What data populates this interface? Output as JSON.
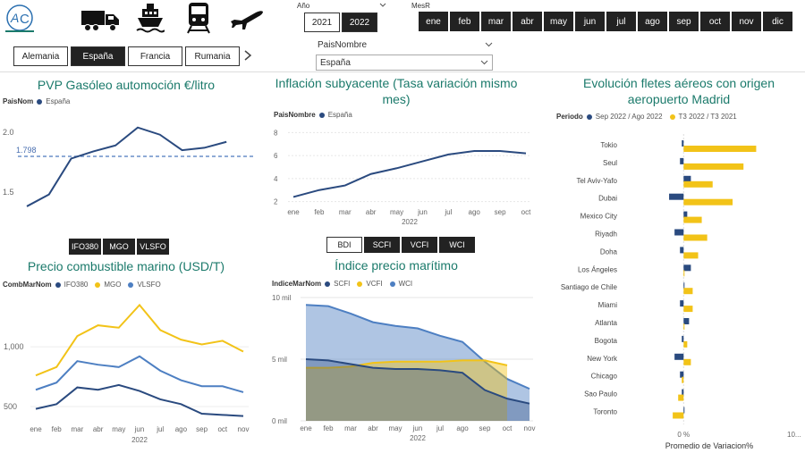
{
  "transport_icons": [
    "truck-icon",
    "ship-icon",
    "train-icon",
    "plane-icon"
  ],
  "country_tabs": [
    {
      "label": "Alemania",
      "selected": false
    },
    {
      "label": "España",
      "selected": true
    },
    {
      "label": "Francia",
      "selected": false
    },
    {
      "label": "Rumania",
      "selected": false
    }
  ],
  "year_filter": {
    "label": "Año",
    "options": [
      "2021",
      "2022"
    ],
    "selected": "2022"
  },
  "month_filter": {
    "label": "MesR",
    "months": [
      "ene",
      "feb",
      "mar",
      "abr",
      "may",
      "jun",
      "jul",
      "ago",
      "sep",
      "oct",
      "nov",
      "dic"
    ]
  },
  "pais_filter": {
    "label": "PaisNombre",
    "value": "España"
  },
  "pvp": {
    "title": "PVP Gasóleo automoción €/litro",
    "legend_field": "PaisNom",
    "legend_series": "España",
    "avg_label": "1.798",
    "y_ticks": [
      "2.0",
      "1.5"
    ],
    "chart_data": {
      "type": "line",
      "x": [
        1,
        2,
        3,
        4,
        5,
        6,
        7,
        8,
        9,
        10,
        11
      ],
      "values": [
        1.38,
        1.48,
        1.78,
        1.84,
        1.89,
        2.04,
        1.98,
        1.85,
        1.87,
        1.92,
        null
      ],
      "avg": 1.798,
      "ylim": [
        1.2,
        2.15
      ]
    }
  },
  "inflacion": {
    "title": "Inflación subyacente (Tasa variación mismo mes)",
    "legend_field": "PaisNombre",
    "legend_series": "España",
    "y_ticks": [
      "8",
      "6",
      "4",
      "2"
    ],
    "x_labels": [
      "ene",
      "feb",
      "mar",
      "abr",
      "may",
      "jun",
      "jul",
      "ago",
      "sep",
      "oct"
    ],
    "x_year": "2022",
    "chart_data": {
      "type": "line",
      "values": [
        2.4,
        3.0,
        3.4,
        4.4,
        4.9,
        5.5,
        6.1,
        6.4,
        6.4,
        6.2
      ],
      "ylim": [
        1.5,
        8.5
      ]
    }
  },
  "marino_buttons": [
    {
      "label": "IFO380"
    },
    {
      "label": "MGO"
    },
    {
      "label": "VLSFO"
    }
  ],
  "marino": {
    "title": "Precio combustible marino (USD/T)",
    "legend_field": "CombMarNom",
    "series_names": [
      "IFO380",
      "MGO",
      "VLSFO"
    ],
    "y_ticks": [
      "1,000",
      "500"
    ],
    "x_labels": [
      "ene",
      "feb",
      "mar",
      "abr",
      "may",
      "jun",
      "jul",
      "ago",
      "sep",
      "oct",
      "nov"
    ],
    "x_year": "2022",
    "colors": [
      "#2a4a7f",
      "#f2c318",
      "#4d7fc2"
    ],
    "chart_data": {
      "type": "line",
      "series": [
        {
          "name": "IFO380",
          "values": [
            480,
            520,
            660,
            640,
            680,
            630,
            560,
            520,
            440,
            430,
            420
          ]
        },
        {
          "name": "MGO",
          "values": [
            760,
            830,
            1090,
            1180,
            1160,
            1350,
            1140,
            1060,
            1020,
            1050,
            960
          ]
        },
        {
          "name": "VLSFO",
          "values": [
            640,
            700,
            880,
            850,
            830,
            920,
            800,
            720,
            670,
            670,
            620
          ]
        }
      ],
      "ylim": [
        380,
        1420
      ]
    }
  },
  "indice_buttons": [
    {
      "label": "BDI",
      "selected": true
    },
    {
      "label": "SCFI",
      "selected": false
    },
    {
      "label": "VCFI",
      "selected": false
    },
    {
      "label": "WCI",
      "selected": false
    }
  ],
  "indice": {
    "title": "Índice precio marítimo",
    "legend_field": "IndiceMarNom",
    "series_names": [
      "SCFI",
      "VCFI",
      "WCI"
    ],
    "y_ticks": [
      "10 mil",
      "5 mil",
      "0 mil"
    ],
    "x_labels": [
      "ene",
      "feb",
      "mar",
      "abr",
      "may",
      "jun",
      "jul",
      "ago",
      "sep",
      "oct",
      "nov"
    ],
    "x_year": "2022",
    "chart_data": {
      "type": "area",
      "series": [
        {
          "name": "SCFI",
          "values": [
            5000,
            4900,
            4600,
            4300,
            4200,
            4200,
            4100,
            3900,
            2500,
            1800,
            1400
          ]
        },
        {
          "name": "VCFI",
          "values": [
            4300,
            4300,
            4400,
            4700,
            4800,
            4800,
            4800,
            4900,
            4900,
            4500,
            null
          ]
        },
        {
          "name": "WCI",
          "values": [
            9400,
            9300,
            8700,
            8000,
            7700,
            7500,
            6900,
            6400,
            4800,
            3400,
            2600
          ]
        }
      ],
      "ylim": [
        0,
        10000
      ]
    }
  },
  "fletes": {
    "title": "Evolución fletes aéreos con origen aeropuerto Madrid",
    "legend_field": "Periodo",
    "series_names": [
      "Sep 2022 / Ago 2022",
      "T3 2022 / T3 2021"
    ],
    "x_ticks": [
      "0 %",
      "10..."
    ],
    "x_axis_label": "Promedio de Variacion%",
    "chart_data": {
      "type": "bar",
      "categories": [
        "Tokio",
        "Seul",
        "Tel Aviv-Yafo",
        "Dubai",
        "Mexico City",
        "Riyadh",
        "Doha",
        "Los Ángeles",
        "Santiago de Chile",
        "Miami",
        "Atlanta",
        "Bogota",
        "New York",
        "Chicago",
        "Sao Paulo",
        "Toronto"
      ],
      "series": [
        {
          "name": "Sep 2022 / Ago 2022",
          "values": [
            -1,
            -2,
            4,
            -8,
            2,
            -5,
            -2,
            4,
            0,
            -2,
            3,
            -1,
            -5,
            -2,
            -1,
            0
          ]
        },
        {
          "name": "T3 2022 / T3 2021",
          "values": [
            40,
            33,
            16,
            27,
            10,
            13,
            8,
            0,
            5,
            5,
            0,
            2,
            4,
            -1,
            -3,
            -6
          ]
        }
      ],
      "xlim": [
        -10,
        60
      ]
    }
  }
}
